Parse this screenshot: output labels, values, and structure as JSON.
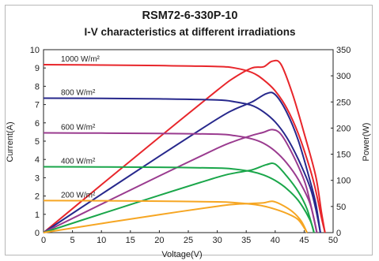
{
  "chart_data": {
    "type": "line",
    "title": "RSM72-6-330P-10",
    "subtitle": "I-V characteristics at different irradiations",
    "xlabel": "Voltage(V)",
    "ylabel_left": "Current(A)",
    "ylabel_right": "Power(W)",
    "xlim": [
      0,
      50
    ],
    "ylim_left": [
      0,
      10
    ],
    "ylim_right": [
      0,
      350
    ],
    "x_ticks": [
      0,
      5,
      10,
      15,
      20,
      25,
      30,
      35,
      40,
      45,
      50
    ],
    "y_ticks_left": [
      0,
      1,
      2,
      3,
      4,
      5,
      6,
      7,
      8,
      9,
      10
    ],
    "y_ticks_right": [
      0,
      50,
      100,
      150,
      200,
      250,
      300,
      350
    ],
    "grid": false,
    "series": [
      {
        "name": "1000 W/m²",
        "color": "#e8262b",
        "iv": [
          [
            0,
            9.18
          ],
          [
            10,
            9.16
          ],
          [
            20,
            9.13
          ],
          [
            30,
            9.08
          ],
          [
            33,
            9.0
          ],
          [
            36,
            8.75
          ],
          [
            38,
            8.35
          ],
          [
            40,
            7.75
          ],
          [
            42,
            6.8
          ],
          [
            44,
            5.4
          ],
          [
            46,
            3.5
          ],
          [
            47,
            2.3
          ],
          [
            48,
            0.8
          ],
          [
            48.6,
            0
          ]
        ],
        "pv": [
          [
            0,
            0
          ],
          [
            10,
            91.6
          ],
          [
            20,
            182.6
          ],
          [
            30,
            272.4
          ],
          [
            33,
            297
          ],
          [
            36,
            315
          ],
          [
            38,
            317.3
          ],
          [
            39.5,
            328
          ],
          [
            41,
            322
          ],
          [
            43,
            265
          ],
          [
            45,
            190
          ],
          [
            47,
            108
          ],
          [
            48,
            38
          ],
          [
            48.6,
            0
          ]
        ]
      },
      {
        "name": "800 W/m²",
        "color": "#27288c",
        "iv": [
          [
            0,
            7.35
          ],
          [
            10,
            7.34
          ],
          [
            20,
            7.31
          ],
          [
            30,
            7.25
          ],
          [
            33,
            7.15
          ],
          [
            36,
            6.95
          ],
          [
            38,
            6.6
          ],
          [
            40,
            6.05
          ],
          [
            42,
            5.2
          ],
          [
            44,
            4.0
          ],
          [
            46,
            2.5
          ],
          [
            47,
            1.3
          ],
          [
            47.8,
            0
          ]
        ],
        "pv": [
          [
            0,
            0
          ],
          [
            10,
            73.4
          ],
          [
            20,
            146.2
          ],
          [
            30,
            217.5
          ],
          [
            33,
            236
          ],
          [
            36,
            250
          ],
          [
            38.5,
            266
          ],
          [
            40,
            264
          ],
          [
            42,
            230
          ],
          [
            44,
            176
          ],
          [
            46,
            100
          ],
          [
            47,
            56
          ],
          [
            47.8,
            0
          ]
        ]
      },
      {
        "name": "600 W/m²",
        "color": "#9a3b8f",
        "iv": [
          [
            0,
            5.45
          ],
          [
            10,
            5.44
          ],
          [
            20,
            5.42
          ],
          [
            30,
            5.38
          ],
          [
            33,
            5.3
          ],
          [
            36,
            5.12
          ],
          [
            38,
            4.88
          ],
          [
            40,
            4.45
          ],
          [
            42,
            3.8
          ],
          [
            44,
            2.9
          ],
          [
            46,
            1.6
          ],
          [
            47.2,
            0
          ]
        ],
        "pv": [
          [
            0,
            0
          ],
          [
            10,
            54.4
          ],
          [
            20,
            108.4
          ],
          [
            30,
            161.4
          ],
          [
            33,
            175
          ],
          [
            36,
            186
          ],
          [
            38,
            192
          ],
          [
            39.5,
            197
          ],
          [
            41,
            188
          ],
          [
            43,
            150
          ],
          [
            45,
            100
          ],
          [
            46,
            60
          ],
          [
            47.2,
            0
          ]
        ]
      },
      {
        "name": "400 W/m²",
        "color": "#1aa64a",
        "iv": [
          [
            0,
            3.6
          ],
          [
            10,
            3.59
          ],
          [
            20,
            3.57
          ],
          [
            30,
            3.53
          ],
          [
            33,
            3.47
          ],
          [
            36,
            3.33
          ],
          [
            38,
            3.15
          ],
          [
            40,
            2.85
          ],
          [
            42,
            2.4
          ],
          [
            44,
            1.75
          ],
          [
            46,
            0.7
          ],
          [
            46.7,
            0
          ]
        ],
        "pv": [
          [
            0,
            0
          ],
          [
            10,
            35.9
          ],
          [
            20,
            71.4
          ],
          [
            30,
            105.9
          ],
          [
            33,
            114
          ],
          [
            36,
            120
          ],
          [
            38.5,
            130
          ],
          [
            40,
            131
          ],
          [
            42,
            108
          ],
          [
            44,
            78
          ],
          [
            45.5,
            45
          ],
          [
            46.7,
            0
          ]
        ]
      },
      {
        "name": "200 W/m²",
        "color": "#f6a623",
        "iv": [
          [
            0,
            1.75
          ],
          [
            10,
            1.74
          ],
          [
            20,
            1.72
          ],
          [
            30,
            1.68
          ],
          [
            33,
            1.64
          ],
          [
            36,
            1.55
          ],
          [
            38,
            1.45
          ],
          [
            40,
            1.28
          ],
          [
            42,
            1.05
          ],
          [
            44,
            0.7
          ],
          [
            45.5,
            0
          ]
        ],
        "pv": [
          [
            0,
            0
          ],
          [
            10,
            17.4
          ],
          [
            20,
            34.4
          ],
          [
            30,
            50.4
          ],
          [
            33,
            54.1
          ],
          [
            36,
            55.8
          ],
          [
            38,
            57
          ],
          [
            39.5,
            60
          ],
          [
            41,
            54
          ],
          [
            43,
            40
          ],
          [
            44.5,
            22
          ],
          [
            45.5,
            0
          ]
        ]
      }
    ]
  }
}
